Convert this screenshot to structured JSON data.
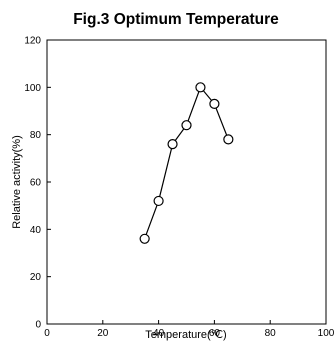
{
  "chart_data": {
    "type": "line",
    "title": "Fig.3 Optimum Temperature",
    "xlabel": "Temperature(℃)",
    "ylabel": "Relative activity(%)",
    "xlim": [
      0,
      100
    ],
    "ylim": [
      0,
      120
    ],
    "x_ticks": [
      "0",
      "20",
      "40",
      "60",
      "80",
      "100"
    ],
    "y_ticks": [
      "0",
      "20",
      "40",
      "60",
      "80",
      "100",
      "120"
    ],
    "grid": false,
    "marker": "open-circle",
    "series": [
      {
        "x": [
          35,
          40,
          45,
          50,
          55,
          60,
          65
        ],
        "y": [
          36,
          52,
          76,
          84,
          100,
          93,
          78
        ]
      }
    ]
  }
}
